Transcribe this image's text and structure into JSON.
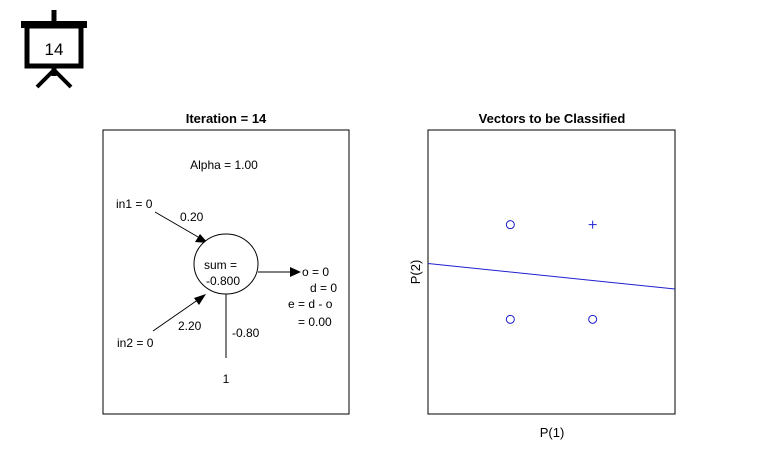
{
  "slide_badge": {
    "number": "14",
    "icon": "presentation-board-icon"
  },
  "network_panel": {
    "title": "Iteration = 14",
    "alpha": "Alpha = 1.00",
    "input1": "in1 = 0",
    "weight1": "0.20",
    "input2": "in2 = 0",
    "weight2": "2.20",
    "sum_line1": "sum =",
    "sum_line2": "-0.800",
    "bias_weight": "-0.80",
    "bias_input": "1",
    "out_o": "o = 0",
    "out_d": "d = 0",
    "out_e": "e = d - o",
    "out_e_val": "= 0.00"
  },
  "chart_data": {
    "type": "scatter",
    "title": "Vectors to be Classified",
    "xlabel": "P(1)",
    "ylabel": "P(2)",
    "xlim": [
      -1.5,
      1.5
    ],
    "ylim": [
      -1.5,
      1.5
    ],
    "grid": false,
    "series": [
      {
        "marker": "circle",
        "color": "#1f1fd0",
        "points": [
          [
            -0.5,
            0.5
          ],
          [
            -0.5,
            -0.5
          ],
          [
            0.5,
            -0.5
          ]
        ]
      },
      {
        "marker": "plus",
        "color": "#1f1fd0",
        "points": [
          [
            0.5,
            0.5
          ]
        ]
      }
    ],
    "decision_line": {
      "color": "#1f1fd0",
      "points": [
        [
          -1.5,
          0.09
        ],
        [
          1.5,
          -0.18
        ]
      ]
    }
  }
}
